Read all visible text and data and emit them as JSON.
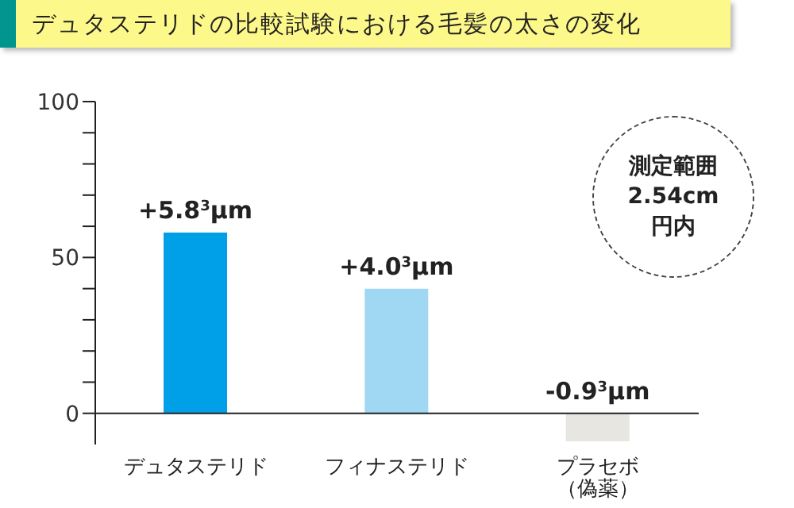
{
  "chart_data": {
    "type": "bar",
    "title": "デュタステリドの比較試験における毛髪の太さの変化",
    "categories": [
      "デュタステリド",
      "フィナステリド",
      "プラセボ（偽薬）"
    ],
    "values": [
      58,
      40,
      -9
    ],
    "colors": [
      "#00a0e9",
      "#a0d8f3",
      "#e8e6e1"
    ],
    "ylim": [
      -10,
      100
    ],
    "yticks": [
      0,
      {
        "value": 10,
        "label": null
      },
      {
        "value": 20,
        "label": null
      },
      {
        "value": 30,
        "label": null
      },
      {
        "value": 40,
        "label": null
      },
      50,
      {
        "value": 60,
        "label": null
      },
      {
        "value": 70,
        "label": null
      },
      {
        "value": 80,
        "label": null
      },
      {
        "value": 90,
        "label": null
      },
      100
    ],
    "annotations": [
      "測定範囲\n2.54cm\n円内",
      {
        "text": "+5.8$^{3}$μm",
        "x": "デュタステリド",
        "y": 58
      },
      {
        "text": "+4.0$^{3}$μm",
        "x": "フィナステリド",
        "y": 40
      },
      {
        "text": "-0.9$^{3}$μm",
        "x": "プラセボ（偽薬）",
        "y": -9
      }
    ],
    "grid": false,
    "legend": false
  }
}
